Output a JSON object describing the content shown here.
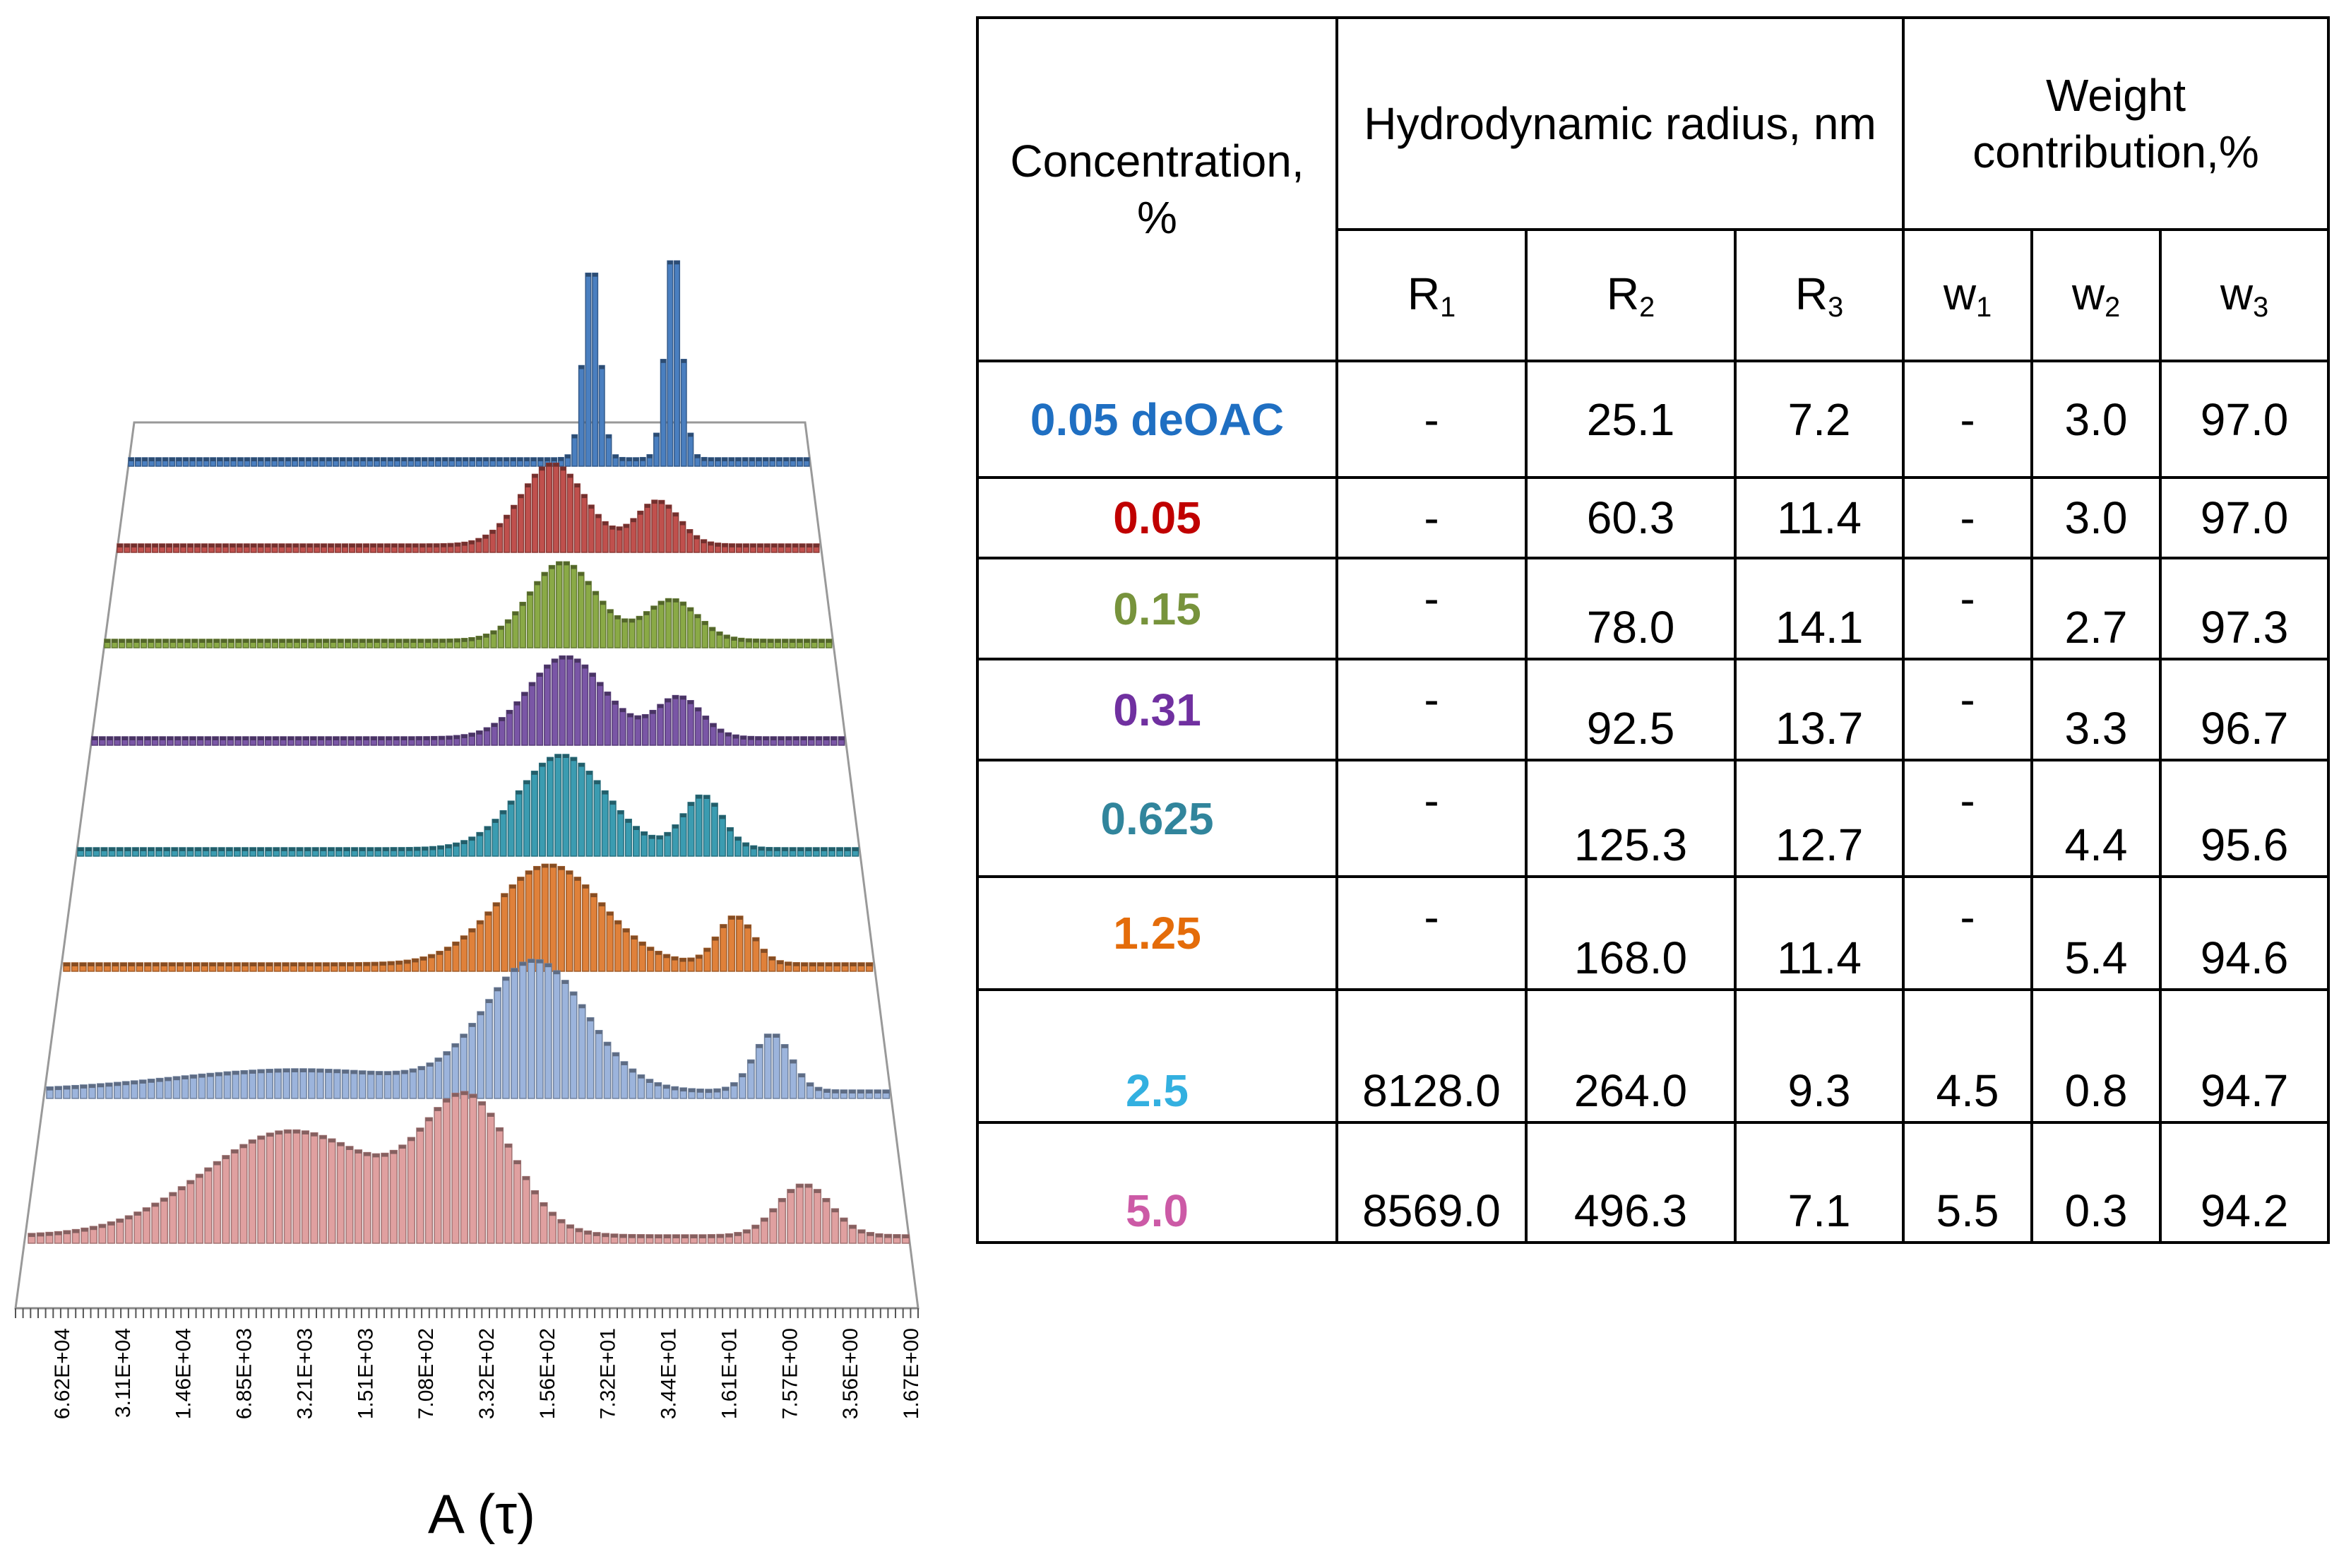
{
  "chart_data": {
    "type": "3d-bar-waterfall",
    "title": "",
    "xlabel": "A (τ)",
    "x_tick_labels": [
      "6.62E+04",
      "3.11E+04",
      "1.46E+04",
      "6.85E+03",
      "3.21E+03",
      "1.51E+03",
      "7.08E+02",
      "3.32E+02",
      "1.56E+02",
      "7.32E+01",
      "3.44E+01",
      "1.61E+01",
      "7.57E+00",
      "3.56E+00",
      "1.67E+00"
    ],
    "x_range": [
      0,
      1
    ],
    "series": [
      {
        "name": "0.05 deOAC",
        "color": "#4a7fc0",
        "peaks": [
          {
            "pos": 0.68,
            "height": 0.75,
            "width": 0.012
          },
          {
            "pos": 0.8,
            "height": 0.8,
            "width": 0.012
          }
        ]
      },
      {
        "name": "0.05",
        "color": "#c0504d",
        "peaks": [
          {
            "pos": 0.62,
            "height": 0.5,
            "width": 0.045
          },
          {
            "pos": 0.77,
            "height": 0.27,
            "width": 0.03
          }
        ]
      },
      {
        "name": "0.15",
        "color": "#8aaa46",
        "peaks": [
          {
            "pos": 0.63,
            "height": 0.48,
            "width": 0.045
          },
          {
            "pos": 0.78,
            "height": 0.25,
            "width": 0.035
          }
        ]
      },
      {
        "name": "0.31",
        "color": "#7a56a6",
        "peaks": [
          {
            "pos": 0.63,
            "height": 0.5,
            "width": 0.05
          },
          {
            "pos": 0.78,
            "height": 0.25,
            "width": 0.03
          }
        ]
      },
      {
        "name": "0.625",
        "color": "#3b9cb1",
        "peaks": [
          {
            "pos": 0.62,
            "height": 0.53,
            "width": 0.055
          },
          {
            "pos": 0.8,
            "height": 0.3,
            "width": 0.025
          }
        ]
      },
      {
        "name": "1.25",
        "color": "#e0813a",
        "peaks": [
          {
            "pos": 0.6,
            "height": 0.56,
            "width": 0.065
          },
          {
            "pos": 0.83,
            "height": 0.27,
            "width": 0.022
          }
        ]
      },
      {
        "name": "2.5",
        "color": "#9cb4dc",
        "peaks": [
          {
            "pos": 0.58,
            "height": 0.6,
            "width": 0.06
          },
          {
            "pos": 0.86,
            "height": 0.27,
            "width": 0.022
          },
          {
            "pos": 0.3,
            "height": 0.1,
            "width": 0.15
          }
        ]
      },
      {
        "name": "5.0",
        "color": "#e0a0a0",
        "peaks": [
          {
            "pos": 0.3,
            "height": 0.45,
            "width": 0.1
          },
          {
            "pos": 0.5,
            "height": 0.55,
            "width": 0.05
          },
          {
            "pos": 0.88,
            "height": 0.22,
            "width": 0.03
          }
        ]
      }
    ]
  },
  "table": {
    "headers": {
      "concentration": "Concentration, %",
      "radius": "Hydrodynamic radius, nm",
      "weight": "Weight contribution,%",
      "r_sym": "R",
      "w_sym": "w",
      "idx": [
        "1",
        "2",
        "3"
      ]
    },
    "rows": [
      {
        "label": "0.05 deOAC",
        "color": "#1f6fc2",
        "r1": "-",
        "r2": "25.1",
        "r3": "7.2",
        "w1": "-",
        "w2": "3.0",
        "w3": "97.0"
      },
      {
        "label": "0.05",
        "color": "#c00000",
        "r1": "-",
        "r2": "60.3",
        "r3": "11.4",
        "w1": "-",
        "w2": "3.0",
        "w3": "97.0"
      },
      {
        "label": "0.15",
        "color": "#77933c",
        "r1": "-",
        "r2": "78.0",
        "r3": "14.1",
        "w1": "-",
        "w2": "2.7",
        "w3": "97.3"
      },
      {
        "label": "0.31",
        "color": "#7030a0",
        "r1": "-",
        "r2": "92.5",
        "r3": "13.7",
        "w1": "-",
        "w2": "3.3",
        "w3": "96.7"
      },
      {
        "label": "0.625",
        "color": "#31859c",
        "r1": "-",
        "r2": "125.3",
        "r3": "12.7",
        "w1": "-",
        "w2": "4.4",
        "w3": "95.6"
      },
      {
        "label": "1.25",
        "color": "#e46c0a",
        "r1": "-",
        "r2": "168.0",
        "r3": "11.4",
        "w1": "-",
        "w2": "5.4",
        "w3": "94.6"
      },
      {
        "label": "2.5",
        "color": "#33b0e0",
        "r1": "8128.0",
        "r2": "264.0",
        "r3": "9.3",
        "w1": "4.5",
        "w2": "0.8",
        "w3": "94.7"
      },
      {
        "label": "5.0",
        "color": "#cc5aa6",
        "r1": "8569.0",
        "r2": "496.3",
        "r3": "7.1",
        "w1": "5.5",
        "w2": "0.3",
        "w3": "94.2"
      }
    ]
  }
}
